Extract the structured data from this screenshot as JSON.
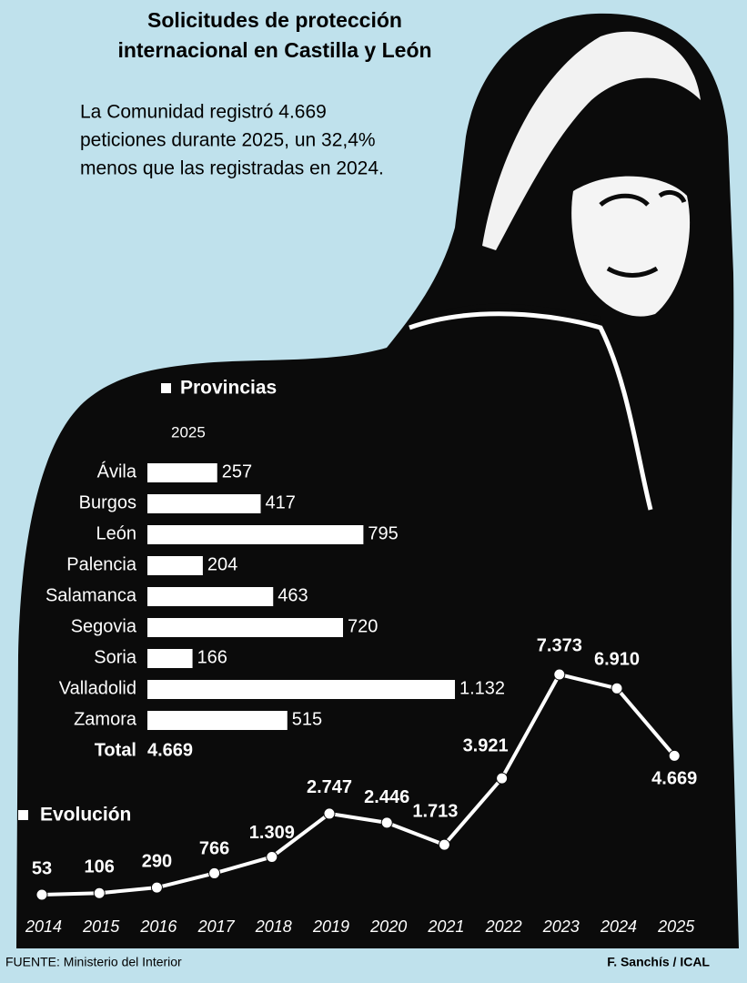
{
  "title_lines": [
    "Solicitudes de protección",
    "internacional en Castilla y León"
  ],
  "description_lines": [
    "La Comunidad registró 4.669",
    "peticiones durante 2025, un 32,4%",
    "menos que las registradas en 2024."
  ],
  "source": "FUENTE: Ministerio del Interior",
  "credit": "F. Sanchís / ICAL",
  "chart_data": [
    {
      "type": "bar",
      "title": "Provincias",
      "subtitle": "2025",
      "color": "#ffffff",
      "categories": [
        "Ávila",
        "Burgos",
        "León",
        "Palencia",
        "Salamanca",
        "Segovia",
        "Soria",
        "Valladolid",
        "Zamora"
      ],
      "values": [
        257,
        417,
        795,
        204,
        463,
        720,
        166,
        1132,
        515
      ],
      "value_labels": [
        "257",
        "417",
        "795",
        "204",
        "463",
        "720",
        "166",
        "1.132",
        "515"
      ],
      "total": {
        "label": "Total",
        "value": 4669,
        "value_label": "4.669"
      }
    },
    {
      "type": "line",
      "title": "Evolución",
      "color": "#ffffff",
      "categories": [
        "2014",
        "2015",
        "2016",
        "2017",
        "2018",
        "2019",
        "2020",
        "2021",
        "2022",
        "2023",
        "2024",
        "2025"
      ],
      "values": [
        53,
        106,
        290,
        766,
        1309,
        2747,
        2446,
        1713,
        3921,
        7373,
        6910,
        4669
      ],
      "value_labels": [
        "53",
        "106",
        "290",
        "766",
        "1.309",
        "2.747",
        "2.446",
        "1.713",
        "3.921",
        "7.373",
        "6.910",
        "4.669"
      ]
    }
  ]
}
